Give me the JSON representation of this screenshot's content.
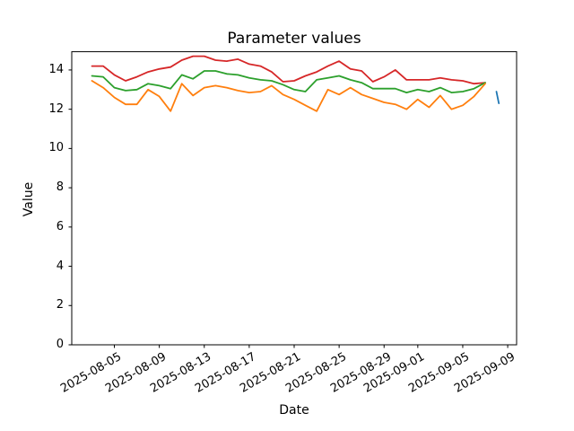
{
  "figure": {
    "title": "Parameter values"
  },
  "chart_data": {
    "type": "line",
    "title": "Parameter values",
    "xlabel": "Date",
    "ylabel": "Value",
    "grid": false,
    "legend": null,
    "ylim": [
      0,
      14.93
    ],
    "xlim": [
      "2025-08-01 05:00",
      "2025-09-09 19:00"
    ],
    "yticks": [
      0,
      2,
      4,
      6,
      8,
      10,
      12,
      14
    ],
    "xticks": [
      "2025-08-05",
      "2025-08-09",
      "2025-08-13",
      "2025-08-17",
      "2025-08-21",
      "2025-08-25",
      "2025-08-29",
      "2025-09-01",
      "2025-09-05",
      "2025-09-09"
    ],
    "x": [
      "2025-08-03",
      "2025-08-04",
      "2025-08-05",
      "2025-08-06",
      "2025-08-07",
      "2025-08-08",
      "2025-08-09",
      "2025-08-10",
      "2025-08-11",
      "2025-08-12",
      "2025-08-13",
      "2025-08-14",
      "2025-08-15",
      "2025-08-16",
      "2025-08-17",
      "2025-08-18",
      "2025-08-19",
      "2025-08-20",
      "2025-08-21",
      "2025-08-22",
      "2025-08-23",
      "2025-08-24",
      "2025-08-25",
      "2025-08-26",
      "2025-08-27",
      "2025-08-28",
      "2025-08-29",
      "2025-08-30",
      "2025-08-31",
      "2025-09-01",
      "2025-09-02",
      "2025-09-03",
      "2025-09-04",
      "2025-09-05",
      "2025-09-06",
      "2025-09-07"
    ],
    "series": [
      {
        "name": "red-line",
        "color": "#d62728",
        "values": [
          14.2,
          14.2,
          13.75,
          13.45,
          13.65,
          13.9,
          14.05,
          14.15,
          14.5,
          14.7,
          14.7,
          14.5,
          14.45,
          14.55,
          14.3,
          14.2,
          13.9,
          13.4,
          13.45,
          13.7,
          13.9,
          14.2,
          14.45,
          14.05,
          13.95,
          13.4,
          13.65,
          14.0,
          13.5,
          13.5,
          13.5,
          13.6,
          13.5,
          13.45,
          13.3,
          13.35
        ]
      },
      {
        "name": "green-line",
        "color": "#2ca02c",
        "values": [
          13.7,
          13.65,
          13.1,
          12.95,
          13.0,
          13.3,
          13.2,
          13.05,
          13.75,
          13.55,
          13.95,
          13.95,
          13.8,
          13.75,
          13.6,
          13.5,
          13.45,
          13.25,
          13.0,
          12.9,
          13.5,
          13.6,
          13.7,
          13.5,
          13.35,
          13.05,
          13.05,
          13.05,
          12.85,
          13.0,
          12.9,
          13.1,
          12.85,
          12.9,
          13.05,
          13.35
        ]
      },
      {
        "name": "orange-line",
        "color": "#ff7f0e",
        "values": [
          13.45,
          13.1,
          12.6,
          12.25,
          12.25,
          13.0,
          12.65,
          11.9,
          13.3,
          12.7,
          13.1,
          13.2,
          13.1,
          12.95,
          12.85,
          12.9,
          13.2,
          12.75,
          12.5,
          12.2,
          11.9,
          13.0,
          12.75,
          13.1,
          12.75,
          12.55,
          12.35,
          12.25,
          12.0,
          12.5,
          12.1,
          12.7,
          12.0,
          12.2,
          12.65,
          13.3
        ]
      },
      {
        "name": "blue-tick-segment",
        "color": "#1f77b4",
        "x": [
          "2025-09-08 00:00",
          "2025-09-08 05:00"
        ],
        "values": [
          12.9,
          12.3
        ],
        "note": "short near-vertical stroke at right side of plot"
      }
    ]
  }
}
